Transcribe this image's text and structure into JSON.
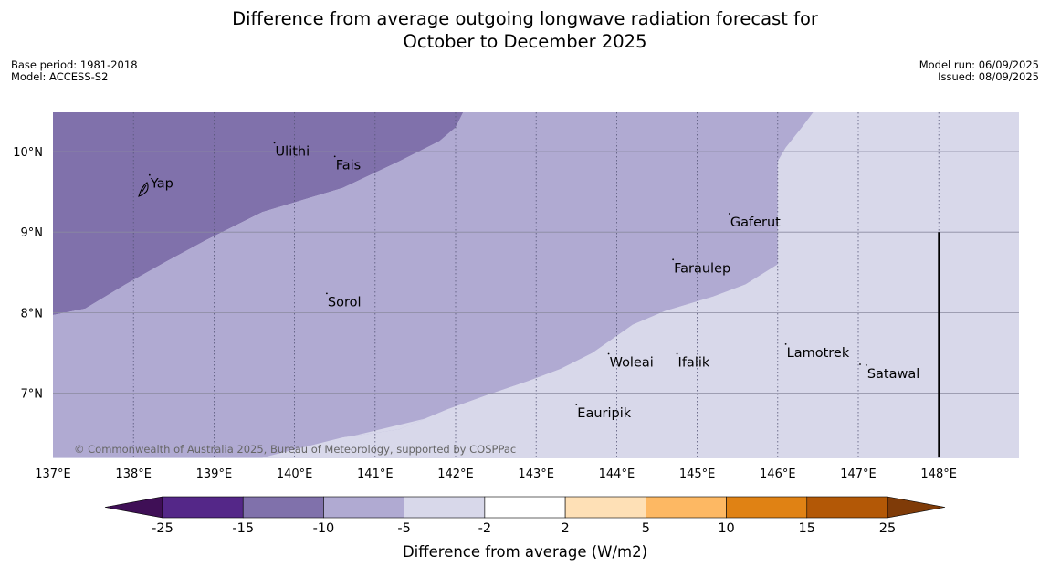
{
  "title": {
    "line1": "Difference from average outgoing longwave radiation forecast for",
    "line2": "October to December 2025"
  },
  "meta": {
    "base_period": "Base period: 1981-2018",
    "model": "Model: ACCESS-S2",
    "model_run": "Model run: 06/09/2025",
    "issued": "Issued: 08/09/2025"
  },
  "copyright": "© Commonwealth of Australia 2025, Bureau of Meteorology, supported by COSPPac",
  "map": {
    "lon_range": [
      137,
      149
    ],
    "lat_range": [
      6.2,
      10.5
    ],
    "lon_ticks": [
      {
        "value": 137,
        "label": "137°E"
      },
      {
        "value": 138,
        "label": "138°E"
      },
      {
        "value": 139,
        "label": "139°E"
      },
      {
        "value": 140,
        "label": "140°E"
      },
      {
        "value": 141,
        "label": "141°E"
      },
      {
        "value": 142,
        "label": "142°E"
      },
      {
        "value": 143,
        "label": "143°E"
      },
      {
        "value": 144,
        "label": "144°E"
      },
      {
        "value": 145,
        "label": "145°E"
      },
      {
        "value": 146,
        "label": "146°E"
      },
      {
        "value": 147,
        "label": "147°E"
      },
      {
        "value": 148,
        "label": "148°E"
      }
    ],
    "lat_ticks": [
      {
        "value": 10,
        "label": "10°N"
      },
      {
        "value": 9,
        "label": "9°N"
      },
      {
        "value": 8,
        "label": "8°N"
      },
      {
        "value": 7,
        "label": "7°N"
      }
    ],
    "zones": [
      {
        "name": "zone-minus-15-to-minus-10",
        "color": "#8071ab",
        "points": [
          [
            137,
            7.97
          ],
          [
            137.4,
            8.05
          ],
          [
            137.9,
            8.35
          ],
          [
            138.4,
            8.63
          ],
          [
            138.9,
            8.9
          ],
          [
            139.6,
            9.25
          ],
          [
            140.6,
            9.55
          ],
          [
            141.3,
            9.88
          ],
          [
            141.8,
            10.13
          ],
          [
            142,
            10.3
          ],
          [
            142.1,
            10.5
          ],
          [
            137,
            10.5
          ]
        ]
      },
      {
        "name": "zone-minus-10-to-minus-5",
        "color": "#b0aad2",
        "points": [
          [
            137,
            6.2
          ],
          [
            139.6,
            6.2
          ],
          [
            140.6,
            6.45
          ],
          [
            141.3,
            6.55
          ],
          [
            141.9,
            6.8
          ],
          [
            142.4,
            6.98
          ],
          [
            142.9,
            7.15
          ],
          [
            143.3,
            7.3
          ],
          [
            143.7,
            7.5
          ],
          [
            144.2,
            7.85
          ],
          [
            144.6,
            8.02
          ],
          [
            145.2,
            8.2
          ],
          [
            145.6,
            8.35
          ],
          [
            146,
            8.6
          ],
          [
            146,
            9.88
          ],
          [
            146.1,
            10.05
          ],
          [
            146.3,
            10.3
          ],
          [
            146.45,
            10.5
          ],
          [
            142.1,
            10.5
          ],
          [
            142,
            10.3
          ],
          [
            141.8,
            10.13
          ],
          [
            141.3,
            9.88
          ],
          [
            140.6,
            9.55
          ],
          [
            139.6,
            9.25
          ],
          [
            138.9,
            8.9
          ],
          [
            138.4,
            8.63
          ],
          [
            137.9,
            8.35
          ],
          [
            137.4,
            8.05
          ],
          [
            137,
            7.97
          ]
        ]
      },
      {
        "name": "zone-minus-5-to-minus-2",
        "color": "#d8d8ea",
        "points": [
          [
            139.6,
            6.2
          ],
          [
            149,
            6.2
          ],
          [
            149,
            8.45
          ],
          [
            148.6,
            8.0
          ],
          [
            148.0,
            7.5
          ],
          [
            147.7,
            7.3
          ],
          [
            147.0,
            6.95
          ],
          [
            146.3,
            6.85
          ],
          [
            145.4,
            6.83
          ],
          [
            144.9,
            6.65
          ],
          [
            144.3,
            6.52
          ],
          [
            143.8,
            6.35
          ],
          [
            143.6,
            6.2
          ],
          [
            139.6,
            6.2
          ],
          [
            140.6,
            6.45
          ],
          [
            141.3,
            6.55
          ],
          [
            141.9,
            6.8
          ],
          [
            142.4,
            6.98
          ],
          [
            142.9,
            7.15
          ],
          [
            143.3,
            7.3
          ],
          [
            143.7,
            7.5
          ],
          [
            144.2,
            7.85
          ],
          [
            144.6,
            8.02
          ],
          [
            145.2,
            8.2
          ],
          [
            145.6,
            8.35
          ],
          [
            146,
            8.6
          ],
          [
            146,
            9.88
          ],
          [
            146.1,
            10.05
          ],
          [
            146.3,
            10.3
          ],
          [
            146.45,
            10.5
          ],
          [
            149,
            10.5
          ],
          [
            149,
            8.45
          ]
        ]
      }
    ],
    "islands": [
      {
        "name": "Yap",
        "lon": 138.2,
        "lat": 9.55
      },
      {
        "name": "Ulithi",
        "lon": 139.75,
        "lat": 9.95
      },
      {
        "name": "Fais",
        "lon": 140.5,
        "lat": 9.78
      },
      {
        "name": "Gaferut",
        "lon": 145.4,
        "lat": 9.07
      },
      {
        "name": "Faraulep",
        "lon": 144.7,
        "lat": 8.5
      },
      {
        "name": "Sorol",
        "lon": 140.4,
        "lat": 8.08
      },
      {
        "name": "Woleai",
        "lon": 143.9,
        "lat": 7.33
      },
      {
        "name": "Ifalik",
        "lon": 144.75,
        "lat": 7.33
      },
      {
        "name": "Lamotrek",
        "lon": 146.1,
        "lat": 7.45
      },
      {
        "name": "Satawal",
        "lon": 147.1,
        "lat": 7.19
      },
      {
        "name": "Eauripik",
        "lon": 143.5,
        "lat": 6.7
      }
    ],
    "boundary_line": {
      "lon": 148,
      "lat_top": 9,
      "lat_bottom": 6.2
    }
  },
  "colorbar": {
    "label": "Difference from average (W/m2)",
    "under_color": "#3f0f56",
    "over_color": "#7f3b08",
    "colors": [
      "#542788",
      "#8071ab",
      "#b0aad2",
      "#d8d8ea",
      "#ffffff",
      "#fee0b6",
      "#fdb863",
      "#e08214",
      "#b35806"
    ],
    "ticks": [
      "-25",
      "-15",
      "-10",
      "-5",
      "-2",
      "2",
      "5",
      "10",
      "15",
      "25"
    ]
  }
}
